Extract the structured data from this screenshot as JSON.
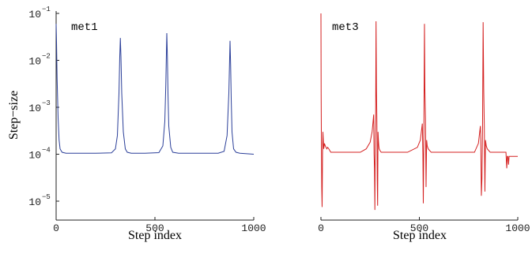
{
  "chart_data": [
    {
      "type": "line",
      "xlabel": "Step index",
      "ylabel": "Step−size",
      "yscale": "log",
      "xlim": [
        0,
        1000
      ],
      "ylim": [
        5e-06,
        0.1
      ],
      "xticks": [
        0,
        500,
        1000
      ],
      "yticks": [
        {
          "base": "10",
          "exp": "−5",
          "value": 1e-05
        },
        {
          "base": "10",
          "exp": "−4",
          "value": 0.0001
        },
        {
          "base": "10",
          "exp": "−3",
          "value": 0.001
        },
        {
          "base": "10",
          "exp": "−2",
          "value": 0.01
        },
        {
          "base": "10",
          "exp": "−1",
          "value": 0.1
        }
      ],
      "annotation": "met1",
      "color": "#2b3f99",
      "x": [
        0,
        2,
        5,
        10,
        15,
        20,
        30,
        50,
        100,
        200,
        280,
        300,
        310,
        318,
        322,
        325,
        328,
        332,
        340,
        350,
        360,
        380,
        450,
        520,
        540,
        550,
        555,
        560,
        563,
        566,
        570,
        580,
        590,
        620,
        700,
        820,
        850,
        865,
        874,
        880,
        883,
        886,
        890,
        898,
        910,
        930,
        1000
      ],
      "values": [
        0.06,
        0.025,
        0.004,
        0.0006,
        0.0002,
        0.00013,
        0.00011,
        0.000105,
        0.000105,
        0.000105,
        0.000107,
        0.00013,
        0.00025,
        0.002,
        0.012,
        0.03,
        0.012,
        0.002,
        0.0003,
        0.00013,
        0.00011,
        0.000105,
        0.000105,
        0.000108,
        0.00015,
        0.0005,
        0.003,
        0.038,
        0.012,
        0.002,
        0.0004,
        0.00014,
        0.00011,
        0.000105,
        0.000105,
        0.000105,
        0.000115,
        0.00025,
        0.002,
        0.026,
        0.008,
        0.0015,
        0.0003,
        0.00013,
        0.00011,
        0.000105,
        0.0001
      ]
    },
    {
      "type": "line",
      "xlabel": "Step index",
      "ylabel": "",
      "yscale": "log",
      "xlim": [
        0,
        1000
      ],
      "ylim": [
        5e-06,
        0.1
      ],
      "xticks": [
        0,
        500,
        1000
      ],
      "annotation": "met3",
      "color": "#d42020",
      "x": [
        0,
        1,
        2,
        4,
        6,
        8,
        10,
        12,
        14,
        18,
        22,
        26,
        30,
        34,
        40,
        50,
        80,
        150,
        200,
        230,
        250,
        260,
        268,
        270,
        272,
        274,
        276,
        278,
        280,
        282,
        284,
        286,
        288,
        290,
        292,
        294,
        296,
        300,
        306,
        320,
        360,
        440,
        490,
        505,
        515,
        518,
        520,
        523,
        526,
        528,
        531,
        534,
        537,
        540,
        545,
        560,
        600,
        700,
        780,
        800,
        810,
        812,
        815,
        818,
        821,
        824,
        827,
        830,
        833,
        836,
        840,
        845,
        860,
        900,
        940,
        944,
        947,
        950,
        953,
        956,
        960,
        1000
      ],
      "values": [
        0.1,
        0.002,
        0.0003,
        2e-05,
        7.5e-06,
        0.0001,
        0.0003,
        0.0002,
        0.00013,
        0.00017,
        0.00015,
        0.00014,
        0.00013,
        0.00014,
        0.00013,
        0.00011,
        0.00011,
        0.00011,
        0.00011,
        0.00013,
        0.00018,
        0.0003,
        0.0007,
        0.0001,
        5e-05,
        6.5e-06,
        0.0002,
        0.0006,
        0.068,
        0.0025,
        0.0006,
        3e-05,
        8e-06,
        0.0003,
        0.0002,
        0.00015,
        0.00013,
        0.00012,
        0.00011,
        0.00011,
        0.00011,
        0.00011,
        0.00014,
        0.0002,
        0.00045,
        0.0001,
        9e-06,
        0.0003,
        0.06,
        0.0025,
        0.0006,
        2e-05,
        0.0002,
        0.00015,
        0.00013,
        0.00011,
        0.00011,
        0.00011,
        0.00011,
        0.00017,
        0.0004,
        0.0002,
        1.3e-05,
        3e-05,
        0.00035,
        0.065,
        0.0025,
        0.0004,
        1.6e-05,
        0.0002,
        0.00015,
        0.00013,
        0.00011,
        0.00011,
        0.00011,
        5e-05,
        9e-05,
        9e-05,
        6e-05,
        9e-05,
        9e-05,
        9e-05
      ]
    }
  ]
}
